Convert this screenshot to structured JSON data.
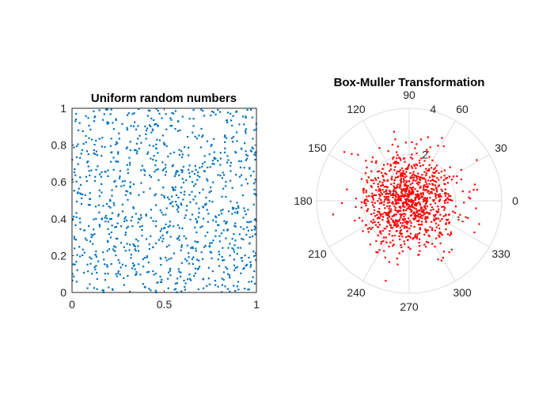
{
  "chart_data": [
    {
      "type": "scatter",
      "title": "Uniform random numbers",
      "xlabel": "",
      "ylabel": "",
      "xlim": [
        0,
        1
      ],
      "ylim": [
        0,
        1
      ],
      "grid": false,
      "box": true,
      "marker_color": "#0072BD",
      "marker": "point",
      "point_count": 1000,
      "distribution": "uniform on [0,1] x [0,1]",
      "x_ticks": [
        "0",
        "0.5",
        "1"
      ],
      "y_ticks": [
        "0",
        "0.2",
        "0.4",
        "0.6",
        "0.8",
        "1"
      ]
    },
    {
      "type": "scatter",
      "subtype": "polar",
      "title": "Box-Muller Transformation",
      "theta_unit": "degrees",
      "rlim": [
        0,
        4
      ],
      "grid": true,
      "marker_color": "#FF0000",
      "marker": "point",
      "point_count": 1000,
      "distribution": "standard bivariate normal (radius from Box-Muller)",
      "theta_ticks": [
        "0",
        "30",
        "60",
        "90",
        "120",
        "150",
        "180",
        "210",
        "240",
        "270",
        "300",
        "330"
      ],
      "r_ticks": [
        "2",
        "4"
      ]
    }
  ]
}
